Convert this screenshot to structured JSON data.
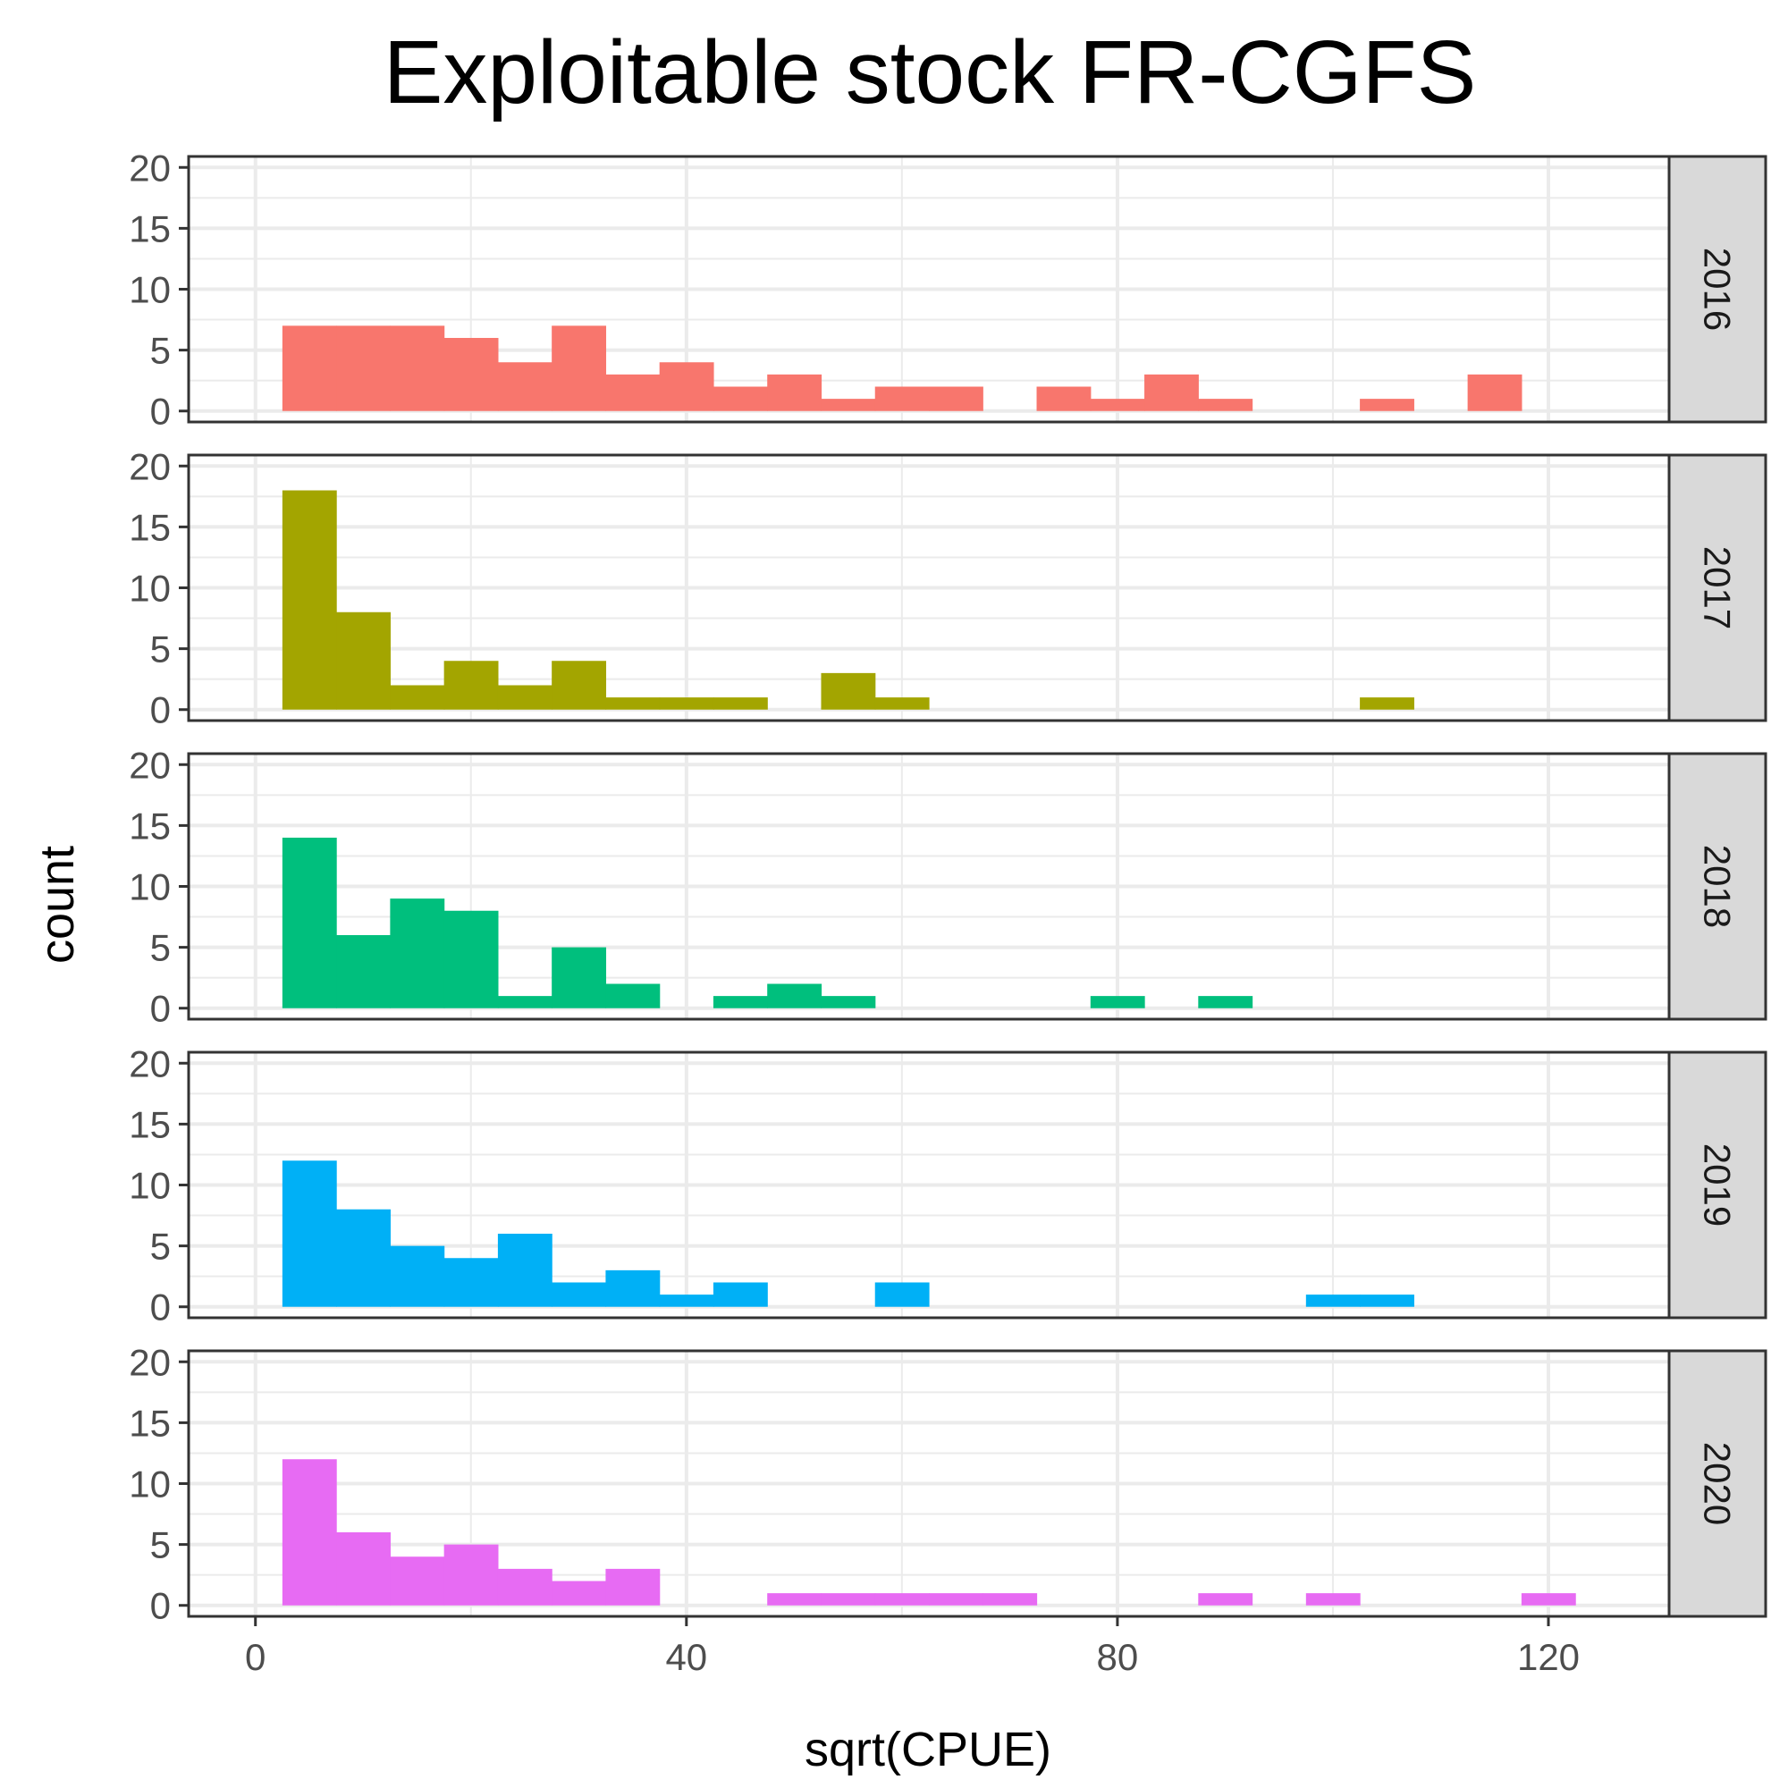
{
  "chart_data": {
    "type": "bar",
    "subtype": "faceted-histogram",
    "title": "Exploitable stock FR-CGFS",
    "xlabel": "sqrt(CPUE)",
    "ylabel": "count",
    "xlim": [
      -6.2,
      131.2
    ],
    "ylim": [
      -0.9,
      20.9
    ],
    "xticks": [
      0,
      40,
      80,
      120
    ],
    "yticks": [
      0,
      5,
      10,
      15,
      20
    ],
    "xminor": [
      20,
      60,
      100
    ],
    "yminor": [
      2.5,
      7.5,
      12.5,
      17.5
    ],
    "bin_width": 5,
    "bin_starts": [
      2.5,
      7.5,
      12.5,
      17.5,
      22.5,
      27.5,
      32.5,
      37.5,
      42.5,
      47.5,
      52.5,
      57.5,
      62.5,
      67.5,
      72.5,
      77.5,
      82.5,
      87.5,
      92.5,
      97.5,
      102.5,
      107.5,
      112.5,
      117.5
    ],
    "series": [
      {
        "name": "2016",
        "color": "#F8766D",
        "values": [
          7,
          7,
          7,
          6,
          4,
          7,
          3,
          4,
          2,
          3,
          1,
          2,
          2,
          0,
          2,
          1,
          3,
          1,
          0,
          0,
          1,
          0,
          3,
          0
        ]
      },
      {
        "name": "2017",
        "color": "#A3A500",
        "values": [
          18,
          8,
          2,
          4,
          2,
          4,
          1,
          1,
          1,
          0,
          3,
          1,
          0,
          0,
          0,
          0,
          0,
          0,
          0,
          0,
          1,
          0,
          0,
          0
        ]
      },
      {
        "name": "2018",
        "color": "#00BF7D",
        "values": [
          14,
          6,
          9,
          8,
          1,
          5,
          2,
          0,
          1,
          2,
          1,
          0,
          0,
          0,
          0,
          1,
          0,
          1,
          0,
          0,
          0,
          0,
          0,
          0
        ]
      },
      {
        "name": "2019",
        "color": "#00B0F6",
        "values": [
          12,
          8,
          5,
          4,
          6,
          2,
          3,
          1,
          2,
          0,
          0,
          2,
          0,
          0,
          0,
          0,
          0,
          0,
          0,
          1,
          1,
          0,
          0,
          0
        ]
      },
      {
        "name": "2020",
        "color": "#E76BF3",
        "values": [
          12,
          6,
          4,
          5,
          3,
          2,
          3,
          0,
          0,
          1,
          1,
          1,
          1,
          1,
          0,
          0,
          0,
          1,
          0,
          1,
          0,
          0,
          0,
          1
        ]
      }
    ]
  }
}
